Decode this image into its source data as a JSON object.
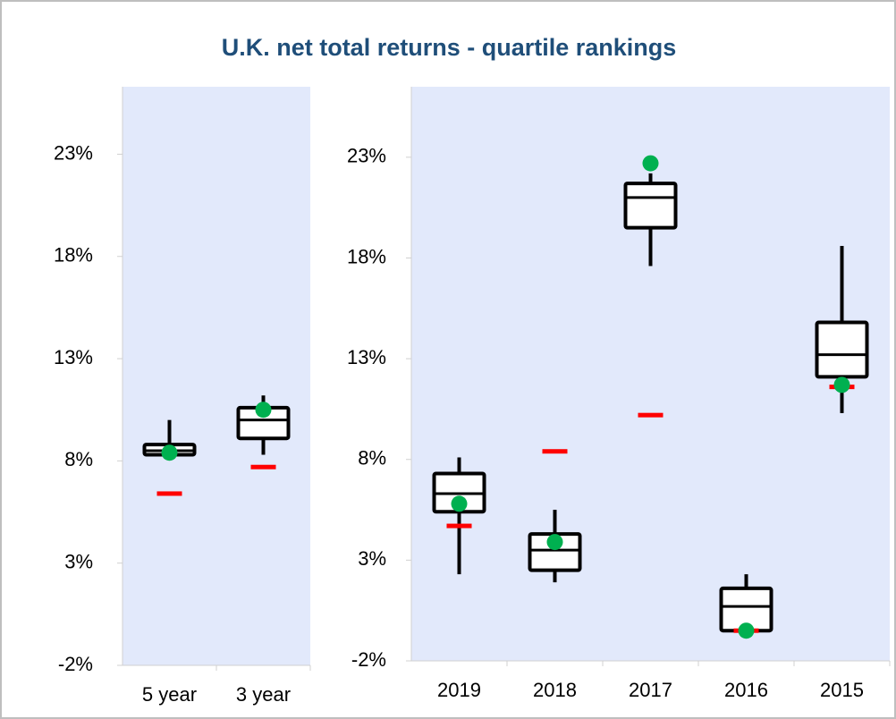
{
  "chart_data": [
    {
      "type": "box",
      "title": "U.K. net total returns - quartile rankings",
      "categories": [
        "5 year",
        "3 year"
      ],
      "boxes": [
        {
          "min": 8.1,
          "q1": 8.3,
          "median": 8.5,
          "q3": 8.8,
          "max": 10.0,
          "fund": 8.4,
          "benchmark": 6.4
        },
        {
          "min": 8.3,
          "q1": 9.1,
          "median": 10.0,
          "q3": 10.6,
          "max": 11.2,
          "fund": 10.5,
          "benchmark": 7.7
        }
      ],
      "ylim": [
        -2,
        26.3
      ],
      "yticks": [
        {
          "value": -2,
          "label": "-2%"
        },
        {
          "value": 3,
          "label": "3%"
        },
        {
          "value": 8,
          "label": "8%"
        },
        {
          "value": 13,
          "label": "13%"
        },
        {
          "value": 18,
          "label": "18%"
        },
        {
          "value": 23,
          "label": "23%"
        }
      ],
      "box_color": "#000000",
      "fund_color": "#00b050",
      "benchmark_color": "#ff0000",
      "background": "#e2e9fb"
    },
    {
      "type": "box",
      "categories": [
        "2019",
        "2018",
        "2017",
        "2016",
        "2015"
      ],
      "boxes": [
        {
          "min": 2.3,
          "q1": 5.4,
          "median": 6.3,
          "q3": 7.3,
          "max": 8.1,
          "fund": 5.8,
          "benchmark": 4.7
        },
        {
          "min": 1.9,
          "q1": 2.5,
          "median": 3.5,
          "q3": 4.3,
          "max": 5.5,
          "fund": 3.9,
          "benchmark": 8.4
        },
        {
          "min": 17.6,
          "q1": 19.5,
          "median": 21.0,
          "q3": 21.7,
          "max": 22.2,
          "fund": 22.7,
          "benchmark": 10.2
        },
        {
          "min": -0.5,
          "q1": -0.5,
          "median": 0.7,
          "q3": 1.6,
          "max": 2.3,
          "fund": -0.5,
          "benchmark": -0.5
        },
        {
          "min": 10.3,
          "q1": 12.1,
          "median": 13.2,
          "q3": 14.8,
          "max": 18.6,
          "fund": 11.7,
          "benchmark": 11.6
        }
      ],
      "ylim": [
        -2,
        26.5
      ],
      "yticks": [
        {
          "value": -2,
          "label": "-2%"
        },
        {
          "value": 3,
          "label": "3%"
        },
        {
          "value": 8,
          "label": "8%"
        },
        {
          "value": 13,
          "label": "13%"
        },
        {
          "value": 18,
          "label": "18%"
        },
        {
          "value": 23,
          "label": "23%"
        }
      ],
      "box_color": "#000000",
      "fund_color": "#00b050",
      "benchmark_color": "#ff0000",
      "background": "#e2e9fb"
    }
  ]
}
